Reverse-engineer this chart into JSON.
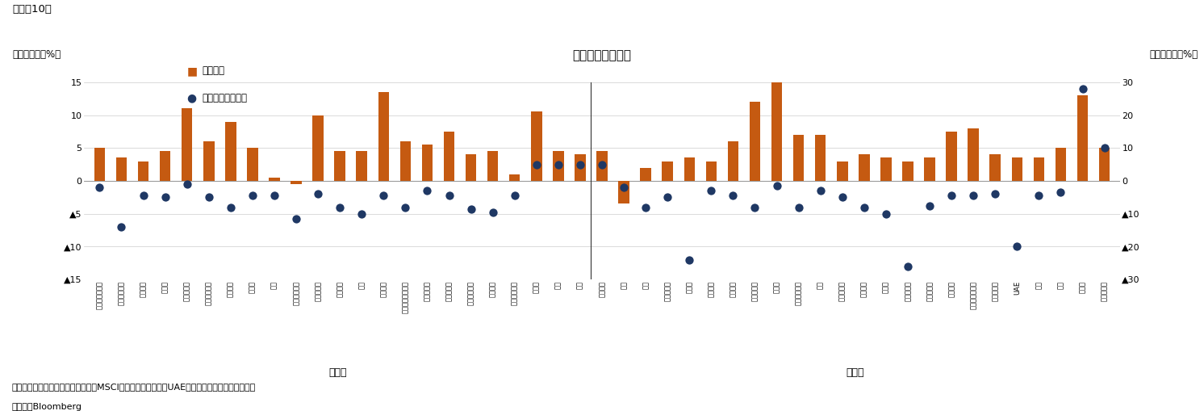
{
  "title": "各国の株価変動率",
  "subtitle": "（図表10）",
  "ylabel_left": "（前月末比、%）",
  "ylabel_right": "（前年末比、%）",
  "legend_bar": "前月末比",
  "legend_dot": "前年末比（右軸）",
  "note1": "（注）各国指数は現地通貨ベースのMSCI構成指数、ただし、UAEはサウジ・タダウル全株指数",
  "note2": "（資料）Bloomberg",
  "label_developed": "先進国",
  "label_emerging": "新興国",
  "countries": [
    "オーストラリア",
    "オーストリア",
    "ベルギー",
    "カナダ",
    "デンマーク",
    "フィンランド",
    "フランス",
    "ドイツ",
    "韓国",
    "アイルランド",
    "イスラエル",
    "イタリア",
    "日本",
    "オランダ",
    "ニュージーランド",
    "ノルウェー",
    "ポルトガル",
    "シンガポール",
    "スペイン",
    "スウェーデン",
    "スイス",
    "韓国",
    "米国",
    "ブラジル",
    "チリ",
    "中国",
    "コロンビア",
    "チェコ",
    "エジプト",
    "ギリシャ",
    "ハンガリー",
    "インド",
    "インドネシア",
    "韓国",
    "マレーシア",
    "メキシコ",
    "ペルー",
    "フィリピン",
    "ポーランド",
    "カタール",
    "サウジアラビア",
    "南アフリカ",
    "UAE",
    "台湾",
    "タイ",
    "トルコ",
    "クウェート"
  ],
  "bar_values": [
    5.0,
    3.5,
    3.0,
    4.5,
    11.0,
    6.0,
    9.0,
    5.0,
    0.5,
    -0.5,
    10.0,
    4.5,
    4.5,
    13.5,
    6.0,
    5.5,
    7.5,
    4.0,
    4.5,
    1.0,
    10.5,
    4.5,
    4.0,
    4.5,
    -3.5,
    2.0,
    3.0,
    3.5,
    3.0,
    6.0,
    12.0,
    15.0,
    7.0,
    7.0,
    3.0,
    4.0,
    3.5,
    3.0,
    3.5,
    7.5,
    8.0,
    4.0,
    3.5,
    3.5,
    5.0,
    13.0,
    5.0
  ],
  "dot_values": [
    -2.0,
    -14.0,
    -4.5,
    -5.0,
    -1.0,
    -5.0,
    -8.0,
    -4.5,
    -4.5,
    -11.5,
    -4.0,
    -8.0,
    -10.0,
    -4.5,
    -8.0,
    -3.0,
    -4.5,
    -8.5,
    -9.5,
    -4.5,
    5.0,
    5.0,
    5.0,
    5.0,
    -2.0,
    -8.0,
    -5.0,
    -24.0,
    -3.0,
    -4.5,
    -8.0,
    -1.5,
    -8.0,
    -3.0,
    -5.0,
    -8.0,
    -10.0,
    -26.0,
    -7.5,
    -4.5,
    -4.5,
    -4.0,
    -20.0,
    -4.5,
    -3.5,
    28.0,
    10.0
  ],
  "n_developed": 23,
  "bar_color": "#C55A11",
  "dot_color": "#1F3864",
  "background_color": "#FFFFFF",
  "ylim_left": [
    -15,
    15
  ],
  "ylim_right": [
    -30,
    30
  ],
  "yticks_left": [
    15,
    10,
    5,
    0,
    -5,
    -10,
    -15
  ],
  "yticks_right": [
    30,
    20,
    10,
    0,
    -10,
    -20,
    -30
  ],
  "title_fontsize": 11,
  "tick_fontsize": 8,
  "note_fontsize": 8,
  "bar_width": 0.5
}
